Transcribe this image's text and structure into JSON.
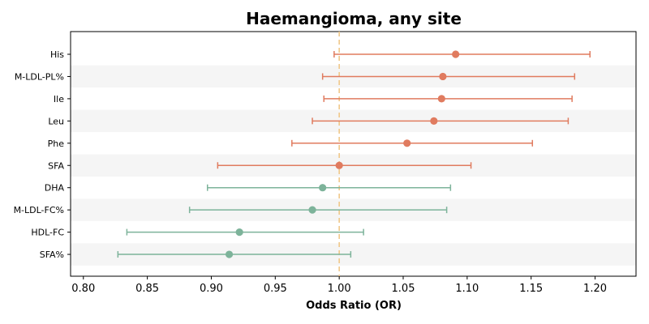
{
  "chart_data": {
    "type": "forest",
    "title": "Haemangioma, any site",
    "xlabel": "Odds Ratio (OR)",
    "ylabel": "",
    "xlim": [
      0.79,
      1.232
    ],
    "xticks": [
      "0.80",
      "0.85",
      "0.90",
      "0.95",
      "1.00",
      "1.05",
      "1.10",
      "1.15",
      "1.20"
    ],
    "reference_line": 1.0,
    "grid": false,
    "alternating_row_shading": true,
    "colors": {
      "positive": "#e07b5f",
      "negative": "#7db39a",
      "reference": "#f0c88a",
      "row_shade": "#f5f5f5"
    },
    "rows": [
      {
        "label": "His",
        "or": 1.091,
        "lo": 0.996,
        "hi": 1.196
      },
      {
        "label": "M-LDL-PL%",
        "or": 1.081,
        "lo": 0.987,
        "hi": 1.184
      },
      {
        "label": "Ile",
        "or": 1.08,
        "lo": 0.988,
        "hi": 1.182
      },
      {
        "label": "Leu",
        "or": 1.074,
        "lo": 0.979,
        "hi": 1.179
      },
      {
        "label": "Phe",
        "or": 1.053,
        "lo": 0.963,
        "hi": 1.151
      },
      {
        "label": "SFA",
        "or": 1.0,
        "lo": 0.905,
        "hi": 1.103
      },
      {
        "label": "DHA",
        "or": 0.987,
        "lo": 0.897,
        "hi": 1.087
      },
      {
        "label": "M-LDL-FC%",
        "or": 0.979,
        "lo": 0.883,
        "hi": 1.084
      },
      {
        "label": "HDL-FC",
        "or": 0.922,
        "lo": 0.834,
        "hi": 1.019
      },
      {
        "label": "SFA%",
        "or": 0.914,
        "lo": 0.827,
        "hi": 1.009
      }
    ]
  }
}
